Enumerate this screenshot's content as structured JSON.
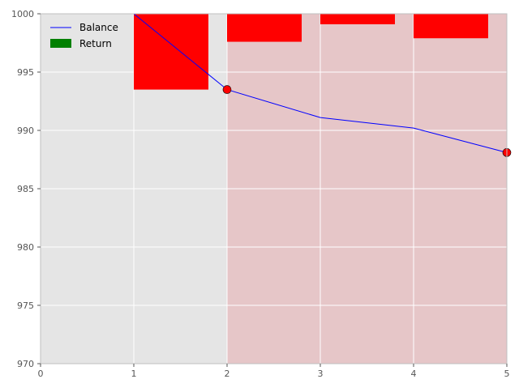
{
  "chart_data": {
    "type": "line",
    "title": "",
    "xlabel": "",
    "ylabel": "",
    "xlim": [
      0,
      5
    ],
    "ylim": [
      970,
      1000
    ],
    "x_ticks": [
      0,
      1,
      2,
      3,
      4,
      5
    ],
    "y_ticks": [
      970,
      975,
      980,
      985,
      990,
      995,
      1000
    ],
    "grid": true,
    "legend_position": "top-left",
    "legend": [
      "Balance",
      "Return"
    ],
    "series": [
      {
        "name": "Balance",
        "kind": "line",
        "color": "#0000ff",
        "x": [
          1,
          2,
          3,
          4,
          5
        ],
        "y": [
          1000,
          993.5,
          991.1,
          990.2,
          988.1
        ],
        "markers": [
          {
            "x": 2,
            "y": 993.5
          },
          {
            "x": 5,
            "y": 988.1
          }
        ],
        "marker_color": "#ff0000"
      },
      {
        "name": "Return",
        "kind": "bar",
        "legend_color": "#008000",
        "color": "#ff0000",
        "x": [
          1,
          2,
          3,
          4
        ],
        "values": [
          -6.5,
          -2.4,
          -0.9,
          -2.1
        ],
        "baseline": 1000,
        "bar_width": 0.8,
        "align": "left"
      }
    ],
    "shaded_region": {
      "x_start": 2,
      "x_end": 5,
      "color": "#e6c6c8"
    },
    "background_color": "#e5e5e5",
    "grid_color": "#ffffff"
  }
}
